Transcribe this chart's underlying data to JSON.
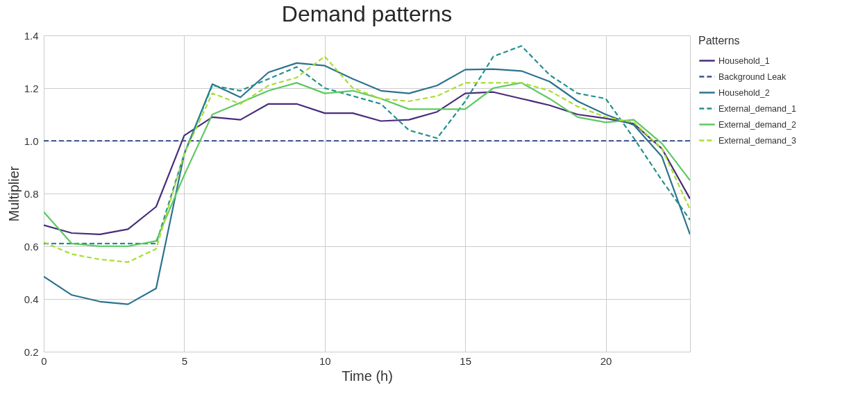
{
  "chart_data": {
    "type": "line",
    "title": "Demand patterns",
    "xlabel": "Time (h)",
    "ylabel": "Multiplier",
    "legend_title": "Patterns",
    "x": [
      0,
      1,
      2,
      3,
      4,
      5,
      6,
      7,
      8,
      9,
      10,
      11,
      12,
      13,
      14,
      15,
      16,
      17,
      18,
      19,
      20,
      21,
      22,
      23
    ],
    "series": [
      {
        "name": "Household_1",
        "color": "#472d7b",
        "line_style": "solid",
        "values": [
          0.68,
          0.65,
          0.645,
          0.665,
          0.75,
          1.02,
          1.09,
          1.08,
          1.14,
          1.14,
          1.105,
          1.105,
          1.075,
          1.08,
          1.11,
          1.18,
          1.185,
          1.16,
          1.135,
          1.1,
          1.085,
          1.065,
          0.97,
          0.78
        ]
      },
      {
        "name": "Background Leak",
        "color": "#3b528b",
        "line_style": "dashed",
        "values": [
          1.0,
          1.0,
          1.0,
          1.0,
          1.0,
          1.0,
          1.0,
          1.0,
          1.0,
          1.0,
          1.0,
          1.0,
          1.0,
          1.0,
          1.0,
          1.0,
          1.0,
          1.0,
          1.0,
          1.0,
          1.0,
          1.0,
          1.0,
          1.0
        ]
      },
      {
        "name": "Household_2",
        "color": "#2c728e",
        "line_style": "solid",
        "values": [
          0.485,
          0.415,
          0.39,
          0.38,
          0.44,
          0.95,
          1.215,
          1.165,
          1.26,
          1.295,
          1.285,
          1.235,
          1.19,
          1.18,
          1.21,
          1.27,
          1.272,
          1.265,
          1.225,
          1.15,
          1.1,
          1.06,
          0.94,
          0.645
        ]
      },
      {
        "name": "External_demand_1",
        "color": "#21918c",
        "line_style": "dashed",
        "values": [
          0.61,
          0.61,
          0.61,
          0.61,
          0.61,
          0.95,
          1.21,
          1.19,
          1.235,
          1.28,
          1.2,
          1.17,
          1.14,
          1.04,
          1.01,
          1.15,
          1.32,
          1.36,
          1.25,
          1.18,
          1.16,
          1.01,
          0.85,
          0.7
        ]
      },
      {
        "name": "External_demand_2",
        "color": "#5ec962",
        "line_style": "solid",
        "values": [
          0.73,
          0.61,
          0.6,
          0.6,
          0.62,
          0.87,
          1.1,
          1.145,
          1.19,
          1.22,
          1.18,
          1.19,
          1.16,
          1.12,
          1.12,
          1.12,
          1.2,
          1.22,
          1.16,
          1.09,
          1.07,
          1.08,
          0.99,
          0.85
        ]
      },
      {
        "name": "External_demand_3",
        "color": "#aadc32",
        "line_style": "dashed",
        "values": [
          0.615,
          0.57,
          0.55,
          0.54,
          0.59,
          0.95,
          1.18,
          1.14,
          1.21,
          1.24,
          1.32,
          1.2,
          1.16,
          1.15,
          1.17,
          1.22,
          1.22,
          1.22,
          1.19,
          1.13,
          1.09,
          1.07,
          0.97,
          0.74
        ]
      }
    ],
    "xlim": [
      0,
      23
    ],
    "xticks": [
      0,
      5,
      10,
      15,
      20
    ],
    "ylim": [
      0.2,
      1.4
    ],
    "yticks": [
      0.2,
      0.4,
      0.6,
      0.8,
      {
        "value": 1,
        "label": "1.0"
      },
      1.2,
      1.4
    ],
    "grid": true,
    "legend": "top right",
    "marker": "none"
  }
}
